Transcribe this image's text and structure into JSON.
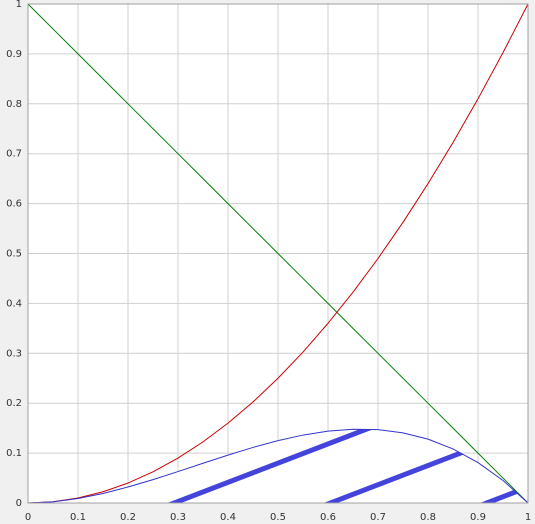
{
  "chart_data": {
    "type": "line",
    "x": [
      0,
      0.05,
      0.1,
      0.15,
      0.2,
      0.25,
      0.3,
      0.35,
      0.4,
      0.45,
      0.5,
      0.55,
      0.6,
      0.65,
      0.7,
      0.75,
      0.8,
      0.85,
      0.9,
      0.95,
      1
    ],
    "series": [
      {
        "color": "#008000",
        "values": [
          1,
          0.95,
          0.9,
          0.85,
          0.8,
          0.75,
          0.7,
          0.65,
          0.6,
          0.55,
          0.5,
          0.45,
          0.4,
          0.35,
          0.3,
          0.25,
          0.2,
          0.15,
          0.1,
          0.05,
          0
        ]
      },
      {
        "color": "#cc0000",
        "values": [
          0,
          0.0025,
          0.01,
          0.0225,
          0.04,
          0.0625,
          0.09,
          0.1225,
          0.16,
          0.2025,
          0.25,
          0.3025,
          0.36,
          0.4225,
          0.49,
          0.5625,
          0.64,
          0.7225,
          0.81,
          0.9025,
          1
        ]
      },
      {
        "color": "#3333cc",
        "hatched": true,
        "values": [
          0,
          0.002375,
          0.009,
          0.019125,
          0.032,
          0.046875,
          0.063,
          0.079625,
          0.096,
          0.111375,
          0.125,
          0.136125,
          0.144,
          0.147875,
          0.147,
          0.140625,
          0.128,
          0.108375,
          0.081,
          0.045125,
          0
        ]
      }
    ],
    "xlim": [
      0,
      1
    ],
    "ylim": [
      0,
      1
    ],
    "xticks": [
      0,
      0.1,
      0.2,
      0.3,
      0.4,
      0.5,
      0.6,
      0.7,
      0.8,
      0.9,
      1
    ],
    "yticks": [
      0,
      0.1,
      0.2,
      0.3,
      0.4,
      0.5,
      0.6,
      0.7,
      0.8,
      0.9,
      1
    ],
    "grid": true
  }
}
